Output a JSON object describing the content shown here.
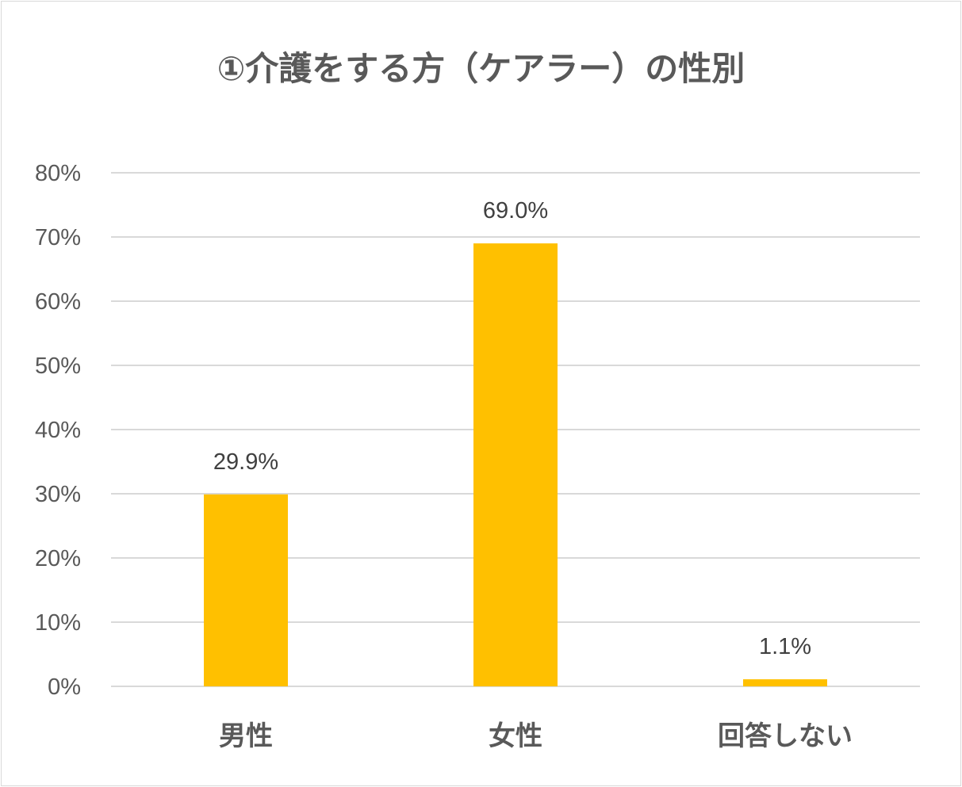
{
  "chart_data": {
    "type": "bar",
    "title": "①介護をする方（ケアラー）の性別",
    "categories": [
      "男性",
      "女性",
      "回答しない"
    ],
    "values": [
      29.9,
      69.0,
      1.1
    ],
    "data_labels": [
      "29.9%",
      "69.0%",
      "1.1%"
    ],
    "y_ticks": [
      "0%",
      "10%",
      "20%",
      "30%",
      "40%",
      "50%",
      "60%",
      "70%",
      "80%"
    ],
    "ylim": [
      0,
      80
    ],
    "grid": true,
    "legend": "none",
    "bar_color": "#FFC000",
    "grid_color": "#d9d9d9"
  }
}
